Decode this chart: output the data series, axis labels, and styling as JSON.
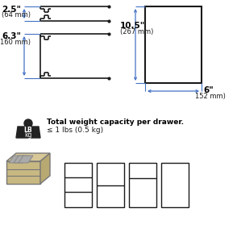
{
  "bg_color": "#ffffff",
  "dim_color": "#4472c4",
  "line_color": "#1a1a1a",
  "text_color": "#1a1a1a",
  "bold_color": "#000000",
  "dim1_label": "2.5\"",
  "dim1_sub": "(64 mm)",
  "dim2_label": "6.3\"",
  "dim2_sub": "160 mm)",
  "dim3_label": "10.5\"",
  "dim3_sub": "(267 mm)",
  "dim4_label": "6\"",
  "dim4_sub": "152 mm)",
  "weight_title": "Total weight capacity per drawer.",
  "weight_sub": "≤ 1 lbs (0.5 kg)",
  "figsize": [
    2.94,
    2.89
  ],
  "dpi": 100
}
